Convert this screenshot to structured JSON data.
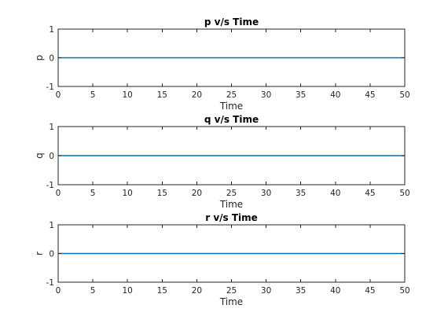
{
  "chart_data": [
    {
      "type": "line",
      "title": "p v/s Time",
      "xlabel": "Time",
      "ylabel": "p",
      "xlim": [
        0,
        50
      ],
      "ylim": [
        -1,
        1
      ],
      "xticks": [
        0,
        5,
        10,
        15,
        20,
        25,
        30,
        35,
        40,
        45,
        50
      ],
      "yticks": [
        -1,
        0,
        1
      ],
      "grid": false,
      "series": [
        {
          "x": [
            0,
            50
          ],
          "y": [
            0,
            0
          ],
          "color": "#0072bd"
        }
      ]
    },
    {
      "type": "line",
      "title": "q v/s Time",
      "xlabel": "Time",
      "ylabel": "q",
      "xlim": [
        0,
        50
      ],
      "ylim": [
        -1,
        1
      ],
      "xticks": [
        0,
        5,
        10,
        15,
        20,
        25,
        30,
        35,
        40,
        45,
        50
      ],
      "yticks": [
        -1,
        0,
        1
      ],
      "grid": false,
      "series": [
        {
          "x": [
            0,
            50
          ],
          "y": [
            0,
            0
          ],
          "color": "#0072bd"
        }
      ]
    },
    {
      "type": "line",
      "title": "r v/s Time",
      "xlabel": "Time",
      "ylabel": "r",
      "xlim": [
        0,
        50
      ],
      "ylim": [
        -1,
        1
      ],
      "xticks": [
        0,
        5,
        10,
        15,
        20,
        25,
        30,
        35,
        40,
        45,
        50
      ],
      "yticks": [
        -1,
        0,
        1
      ],
      "grid": false,
      "series": [
        {
          "x": [
            0,
            50
          ],
          "y": [
            0,
            0
          ],
          "color": "#0072bd"
        }
      ]
    }
  ]
}
